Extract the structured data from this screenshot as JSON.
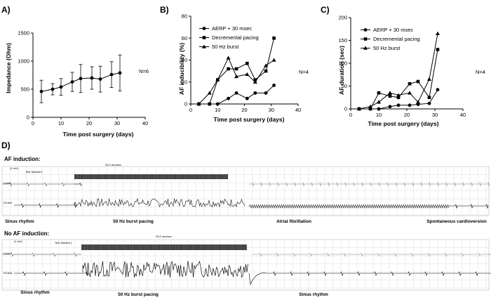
{
  "chart_data": [
    {
      "panel": "A)",
      "type": "line",
      "title": "",
      "xlabel": "Time post surgery (days)",
      "ylabel": "Impedance (Ohm)",
      "xlim": [
        0,
        40
      ],
      "ylim": [
        0,
        1500
      ],
      "xticks": [
        0,
        10,
        20,
        30,
        40
      ],
      "yticks": [
        0,
        500,
        1000,
        1500
      ],
      "annotation": "N=6",
      "series": [
        {
          "name": "Impedance",
          "x": [
            3,
            7,
            10,
            14,
            17,
            21,
            24,
            28,
            31
          ],
          "y": [
            460,
            500,
            540,
            630,
            690,
            700,
            680,
            760,
            790
          ],
          "err": [
            200,
            100,
            150,
            170,
            250,
            200,
            230,
            230,
            320
          ]
        }
      ]
    },
    {
      "panel": "B)",
      "type": "line",
      "title": "",
      "xlabel": "Time post surgery (days)",
      "ylabel": "AF inducibility (%)",
      "xlim": [
        0,
        40
      ],
      "ylim": [
        0,
        80
      ],
      "xticks": [
        0,
        10,
        20,
        30,
        40
      ],
      "yticks": [
        0,
        20,
        40,
        60,
        80
      ],
      "annotation": "N=4",
      "legend": [
        "AERP + 30 msec",
        "Decremental pacing",
        "50 Hz burst"
      ],
      "series": [
        {
          "name": "AERP + 30 msec",
          "marker": "circle",
          "x": [
            3,
            7,
            10,
            14,
            17,
            21,
            24,
            28,
            31
          ],
          "y": [
            0,
            0,
            0,
            5,
            10,
            5,
            10,
            10,
            17
          ]
        },
        {
          "name": "Decremental pacing",
          "marker": "square",
          "x": [
            3,
            7,
            10,
            14,
            17,
            21,
            24,
            28,
            31
          ],
          "y": [
            0,
            0,
            22,
            32,
            32,
            37,
            22,
            30,
            60
          ]
        },
        {
          "name": "50 Hz burst",
          "marker": "triangle",
          "x": [
            3,
            7,
            10,
            14,
            17,
            21,
            24,
            28,
            31
          ],
          "y": [
            0,
            10,
            22,
            42,
            25,
            27,
            20,
            35,
            40
          ]
        }
      ]
    },
    {
      "panel": "C)",
      "type": "line",
      "title": "",
      "xlabel": "Time post surgery (days)",
      "ylabel": "AF duration (sec)",
      "xlim": [
        0,
        40
      ],
      "ylim": [
        0,
        200
      ],
      "xticks": [
        0,
        10,
        20,
        30,
        40
      ],
      "yticks": [
        0,
        50,
        100,
        150,
        200
      ],
      "annotation": "N=4",
      "legend": [
        "AERP + 30 msec",
        "Decremental pacing",
        "50 Hz burst"
      ],
      "series": [
        {
          "name": "AERP + 30 msec",
          "marker": "circle",
          "x": [
            3,
            7,
            10,
            14,
            17,
            21,
            24,
            28,
            31
          ],
          "y": [
            0,
            0,
            0,
            5,
            8,
            8,
            10,
            12,
            42
          ]
        },
        {
          "name": "Decremental pacing",
          "marker": "square",
          "x": [
            3,
            7,
            10,
            14,
            17,
            21,
            24,
            28,
            31
          ],
          "y": [
            0,
            0,
            35,
            28,
            25,
            55,
            60,
            25,
            130
          ]
        },
        {
          "name": "50 Hz burst",
          "marker": "triangle",
          "x": [
            3,
            7,
            10,
            14,
            17,
            21,
            24,
            28,
            31
          ],
          "y": [
            0,
            5,
            15,
            35,
            30,
            35,
            15,
            65,
            165
          ]
        }
      ]
    }
  ],
  "panel_d": {
    "letter": "D)",
    "strips": [
      {
        "heading": "AF induction:",
        "scale": "(1 mV)",
        "test_label": "Test Started*)",
        "speed": "25.0 mm/sec",
        "lead_top": "Lead I",
        "lead_bottom": "ECA#1",
        "phases": [
          {
            "label": "Sinus rhythm",
            "kind": "sinus"
          },
          {
            "label": "50 Hz burst pacing",
            "kind": "burst"
          },
          {
            "label": "Atrial fibrillation",
            "kind": "af"
          },
          {
            "label": "Spontaneous cardioversion",
            "kind": "sinus"
          }
        ]
      },
      {
        "heading": "No AF induction:",
        "scale": "(1 mV)",
        "test_label": "Test Started*)",
        "speed": "25.0 mm/sec",
        "lead_top": "Lead I",
        "lead_bottom": "ECA#1",
        "phases": [
          {
            "label": "Sinus rhythm",
            "kind": "sinus"
          },
          {
            "label": "50 Hz burst pacing",
            "kind": "burst_dense"
          },
          {
            "label": "Sinus rhythm",
            "kind": "sinus"
          }
        ]
      }
    ]
  }
}
